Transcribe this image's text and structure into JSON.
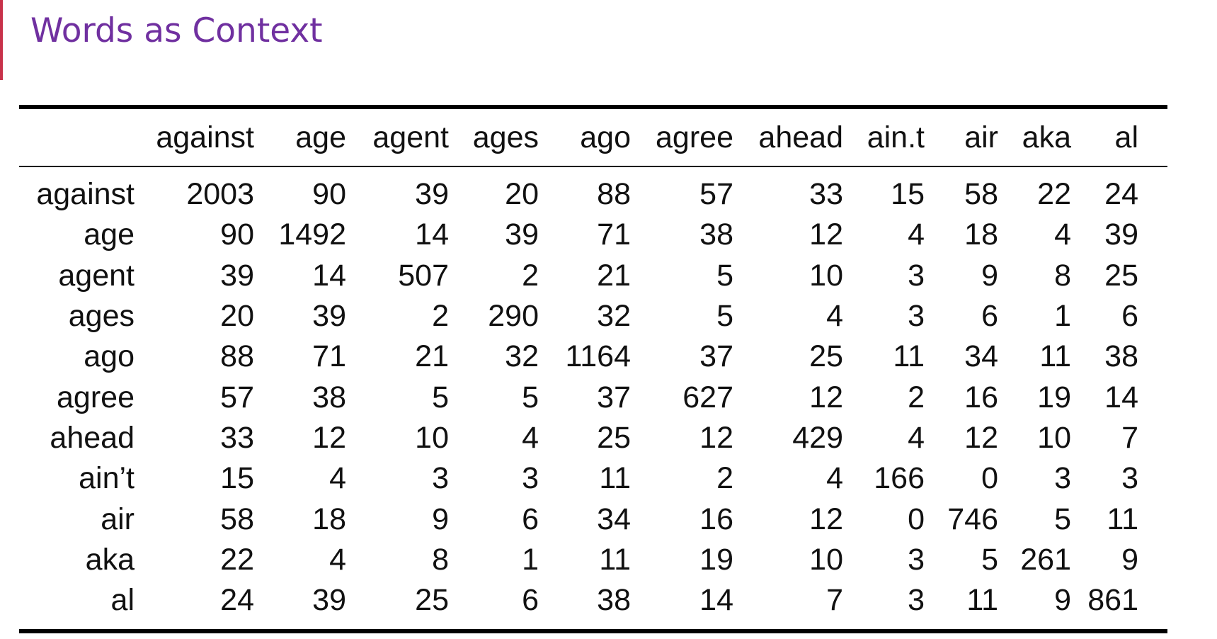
{
  "slide": {
    "title": "Words as Context"
  },
  "table": {
    "columns": [
      "against",
      "age",
      "agent",
      "ages",
      "ago",
      "agree",
      "ahead",
      "ain.t",
      "air",
      "aka",
      "al"
    ],
    "rows": [
      {
        "label": "against",
        "values": [
          "2003",
          "90",
          "39",
          "20",
          "88",
          "57",
          "33",
          "15",
          "58",
          "22",
          "24"
        ]
      },
      {
        "label": "age",
        "values": [
          "90",
          "1492",
          "14",
          "39",
          "71",
          "38",
          "12",
          "4",
          "18",
          "4",
          "39"
        ]
      },
      {
        "label": "agent",
        "values": [
          "39",
          "14",
          "507",
          "2",
          "21",
          "5",
          "10",
          "3",
          "9",
          "8",
          "25"
        ]
      },
      {
        "label": "ages",
        "values": [
          "20",
          "39",
          "2",
          "290",
          "32",
          "5",
          "4",
          "3",
          "6",
          "1",
          "6"
        ]
      },
      {
        "label": "ago",
        "values": [
          "88",
          "71",
          "21",
          "32",
          "1164",
          "37",
          "25",
          "11",
          "34",
          "11",
          "38"
        ]
      },
      {
        "label": "agree",
        "values": [
          "57",
          "38",
          "5",
          "5",
          "37",
          "627",
          "12",
          "2",
          "16",
          "19",
          "14"
        ]
      },
      {
        "label": "ahead",
        "values": [
          "33",
          "12",
          "10",
          "4",
          "25",
          "12",
          "429",
          "4",
          "12",
          "10",
          "7"
        ]
      },
      {
        "label": "ain’t",
        "values": [
          "15",
          "4",
          "3",
          "3",
          "11",
          "2",
          "4",
          "166",
          "0",
          "3",
          "3"
        ]
      },
      {
        "label": "air",
        "values": [
          "58",
          "18",
          "9",
          "6",
          "34",
          "16",
          "12",
          "0",
          "746",
          "5",
          "11"
        ]
      },
      {
        "label": "aka",
        "values": [
          "22",
          "4",
          "8",
          "1",
          "11",
          "19",
          "10",
          "3",
          "5",
          "261",
          "9"
        ]
      },
      {
        "label": "al",
        "values": [
          "24",
          "39",
          "25",
          "6",
          "38",
          "14",
          "7",
          "3",
          "11",
          "9",
          "861"
        ]
      }
    ]
  },
  "colors": {
    "title": "#7030a0",
    "accent_bar": "#c8324a",
    "text": "#111111",
    "rules": "#000000"
  }
}
